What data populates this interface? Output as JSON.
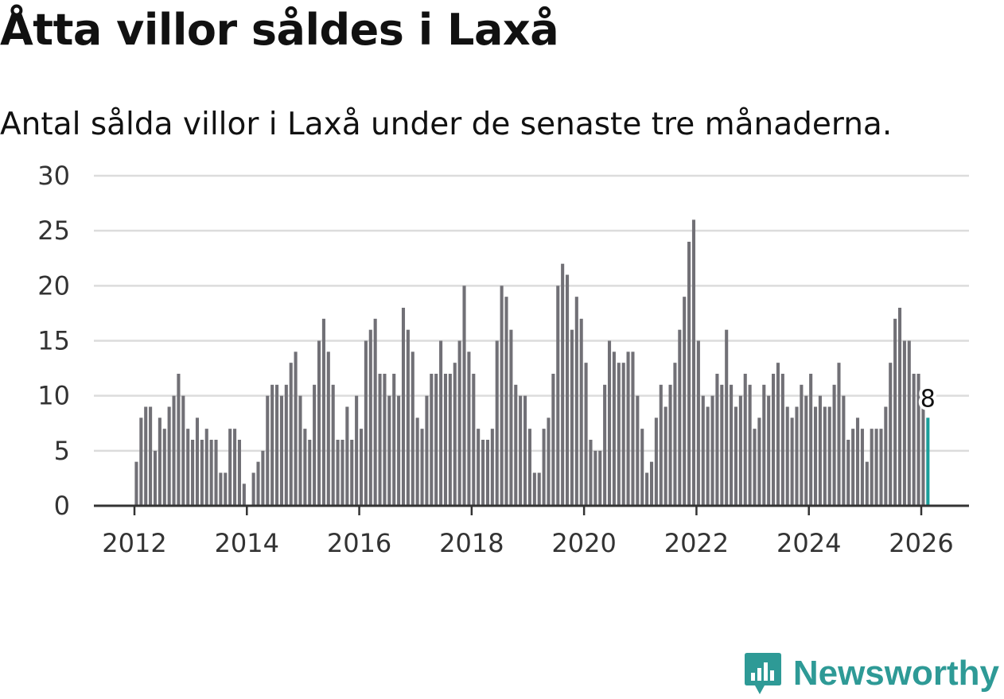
{
  "chart_data": {
    "type": "bar",
    "title": "Åtta villor såldes i Laxå",
    "subtitle": "Antal sålda villor i Laxå under de senaste tre månaderna.",
    "xlabel": "",
    "ylabel": "",
    "ylim": [
      0,
      30
    ],
    "y_ticks": [
      "0",
      "5",
      "10",
      "15",
      "20",
      "25",
      "30"
    ],
    "x_ticks": [
      "2012",
      "2014",
      "2016",
      "2018",
      "2020",
      "2022",
      "2024",
      "2026"
    ],
    "x_start": "2012-01",
    "x_end": "2026-02",
    "grid": true,
    "highlight_label": "8",
    "values": [
      4,
      8,
      9,
      9,
      5,
      8,
      7,
      9,
      10,
      12,
      10,
      7,
      6,
      8,
      6,
      7,
      6,
      6,
      3,
      3,
      7,
      7,
      6,
      2,
      0,
      3,
      4,
      5,
      10,
      11,
      11,
      10,
      11,
      13,
      14,
      10,
      7,
      6,
      11,
      15,
      17,
      14,
      11,
      6,
      6,
      9,
      6,
      10,
      7,
      15,
      16,
      17,
      12,
      12,
      10,
      12,
      10,
      18,
      16,
      14,
      8,
      7,
      10,
      12,
      12,
      15,
      12,
      12,
      13,
      15,
      20,
      14,
      12,
      7,
      6,
      6,
      7,
      15,
      20,
      19,
      16,
      11,
      10,
      10,
      7,
      3,
      3,
      7,
      8,
      12,
      20,
      22,
      21,
      16,
      19,
      17,
      13,
      6,
      5,
      5,
      11,
      15,
      14,
      13,
      13,
      14,
      14,
      10,
      7,
      3,
      4,
      8,
      11,
      9,
      11,
      13,
      16,
      19,
      24,
      26,
      15,
      10,
      9,
      10,
      12,
      11,
      16,
      11,
      9,
      10,
      12,
      11,
      7,
      8,
      11,
      10,
      12,
      13,
      12,
      9,
      8,
      9,
      11,
      10,
      12,
      9,
      10,
      9,
      9,
      11,
      13,
      10,
      6,
      7,
      8,
      7,
      4,
      7,
      7,
      7,
      9,
      13,
      17,
      18,
      15,
      15,
      12,
      12,
      9,
      8
    ],
    "colors": {
      "bar": "#717076",
      "highlight": "#1a9e9a"
    }
  },
  "brand": {
    "name": "Newsworthy",
    "icon": "newsworthy-logo-icon",
    "color": "#2e9a96"
  }
}
